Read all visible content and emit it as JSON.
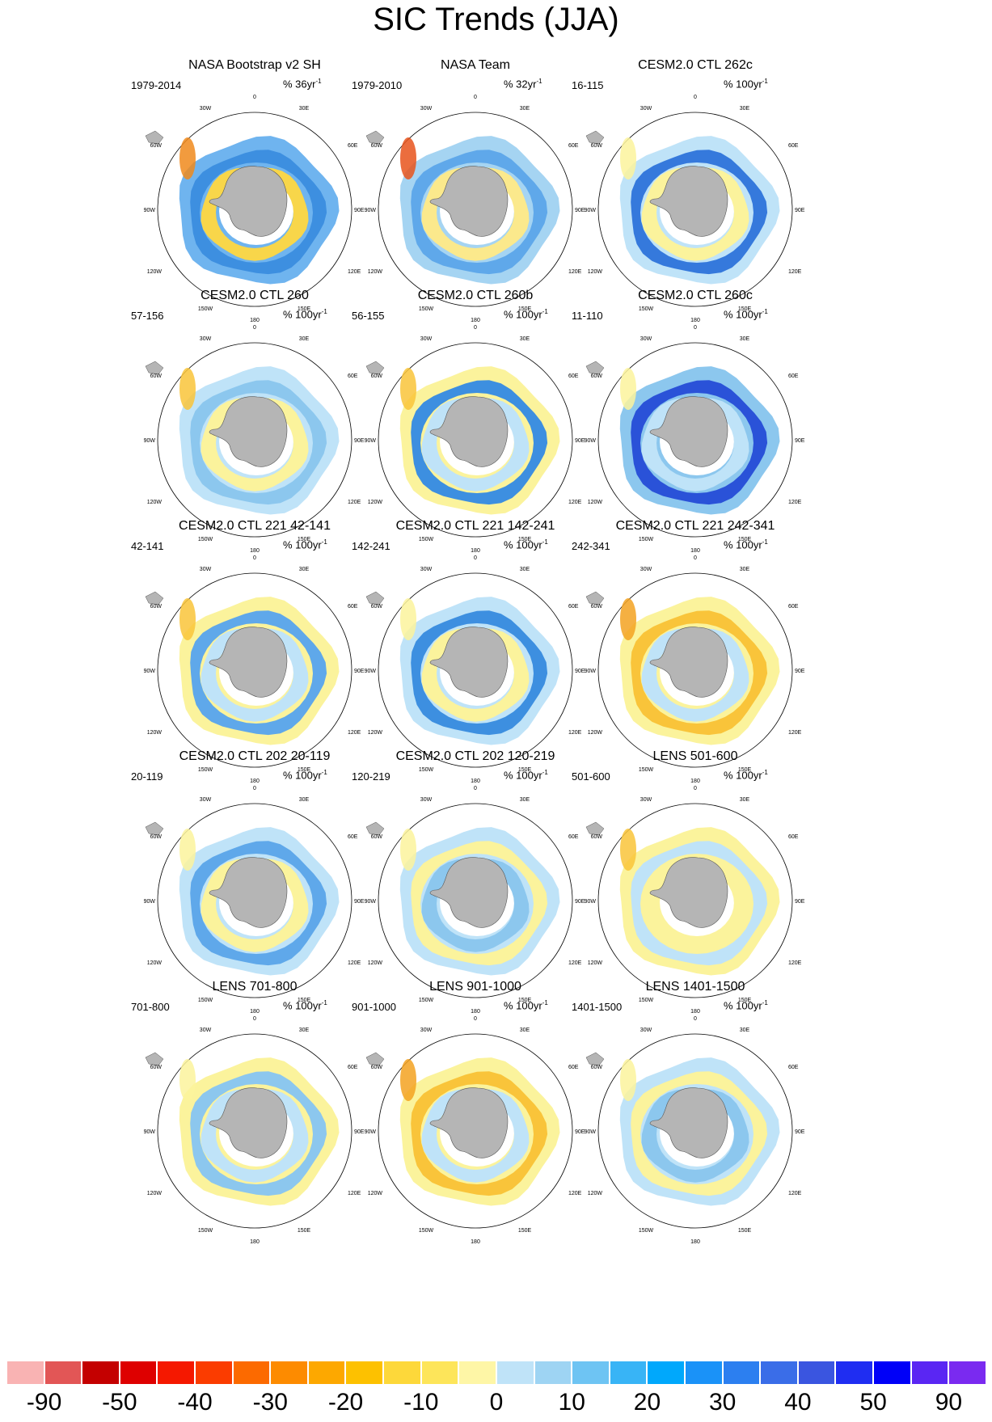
{
  "figure": {
    "title": "SIC Trends (JJA)"
  },
  "map_labels": {
    "top": "0",
    "top_left": "30W",
    "top_right": "30E",
    "upper_left": "60W",
    "upper_right": "60E",
    "left": "90W",
    "right": "90E",
    "lower_left": "120W",
    "lower_right": "120E",
    "bottom_left": "150W",
    "bottom_right": "150E",
    "bottom": "180"
  },
  "colors": {
    "land": "#b5b5b5",
    "ocean_bg": "#ffffff"
  },
  "panels": [
    {
      "title": "NASA Bootstrap v2 SH",
      "period": "1979-2014",
      "units": "% 36yr",
      "units_exp": "-1",
      "ring": [
        "#6fb4ef",
        "#3d8fe0",
        "#f8d64a"
      ],
      "accent": "#f08a1c"
    },
    {
      "title": "NASA Team",
      "period": "1979-2010",
      "units": "% 32yr",
      "units_exp": "-1",
      "ring": [
        "#a5d4f2",
        "#5fa8ea",
        "#fbe98c"
      ],
      "accent": "#e8541c"
    },
    {
      "title": "CESM2.0 CTL 262c",
      "period": "16-115",
      "units": "% 100yr",
      "units_exp": "-1",
      "ring": [
        "#bfe3f8",
        "#3579dc",
        "#fbf39c"
      ],
      "accent": "#fbf39c"
    },
    {
      "title": "CESM2.0 CTL 260",
      "period": "57-156",
      "units": "% 100yr",
      "units_exp": "-1",
      "ring": [
        "#bfe3f8",
        "#8cc7ee",
        "#fbf39c"
      ],
      "accent": "#f9c43a"
    },
    {
      "title": "CESM2.0 CTL 260b",
      "period": "56-155",
      "units": "% 100yr",
      "units_exp": "-1",
      "ring": [
        "#fbf39c",
        "#3d8fe0",
        "#bfe3f8"
      ],
      "accent": "#f9c43a"
    },
    {
      "title": "CESM2.0 CTL 260c",
      "period": "11-110",
      "units": "% 100yr",
      "units_exp": "-1",
      "ring": [
        "#8cc7ee",
        "#2a52d8",
        "#bfe3f8"
      ],
      "accent": "#fbf39c"
    },
    {
      "title": "CESM2.0 CTL 221 42-141",
      "period": "42-141",
      "units": "% 100yr",
      "units_exp": "-1",
      "ring": [
        "#fbf39c",
        "#5fa8ea",
        "#bfe3f8"
      ],
      "accent": "#f9c43a"
    },
    {
      "title": "CESM2.0 CTL 221 142-241",
      "period": "142-241",
      "units": "% 100yr",
      "units_exp": "-1",
      "ring": [
        "#bfe3f8",
        "#3d8fe0",
        "#fbf39c"
      ],
      "accent": "#fbf39c"
    },
    {
      "title": "CESM2.0 CTL 221 242-341",
      "period": "242-341",
      "units": "% 100yr",
      "units_exp": "-1",
      "ring": [
        "#fbf39c",
        "#f9c43a",
        "#bfe3f8"
      ],
      "accent": "#f3a221"
    },
    {
      "title": "CESM2.0 CTL 202 20-119",
      "period": "20-119",
      "units": "% 100yr",
      "units_exp": "-1",
      "ring": [
        "#bfe3f8",
        "#5fa8ea",
        "#fbf39c"
      ],
      "accent": "#fbf39c"
    },
    {
      "title": "CESM2.0 CTL 202 120-219",
      "period": "120-219",
      "units": "% 100yr",
      "units_exp": "-1",
      "ring": [
        "#bfe3f8",
        "#fbf39c",
        "#8cc7ee"
      ],
      "accent": "#fbf39c"
    },
    {
      "title": "LENS 501-600",
      "period": "501-600",
      "units": "% 100yr",
      "units_exp": "-1",
      "ring": [
        "#fbf39c",
        "#bfe3f8",
        "#fbf39c"
      ],
      "accent": "#f9c43a"
    },
    {
      "title": "LENS 701-800",
      "period": "701-800",
      "units": "% 100yr",
      "units_exp": "-1",
      "ring": [
        "#fbf39c",
        "#8cc7ee",
        "#bfe3f8"
      ],
      "accent": "#fbf39c"
    },
    {
      "title": "LENS 901-1000",
      "period": "901-1000",
      "units": "% 100yr",
      "units_exp": "-1",
      "ring": [
        "#fbf39c",
        "#f9c43a",
        "#bfe3f8"
      ],
      "accent": "#f3a221"
    },
    {
      "title": "LENS 1401-1500",
      "period": "1401-1500",
      "units": "% 100yr",
      "units_exp": "-1",
      "ring": [
        "#bfe3f8",
        "#fbf39c",
        "#8cc7ee"
      ],
      "accent": "#fbf39c"
    }
  ],
  "colorbar": {
    "colors": [
      "#f9b3b3",
      "#e25656",
      "#c40000",
      "#de0000",
      "#f51800",
      "#fb3c00",
      "#fc6a00",
      "#fd8b00",
      "#fda800",
      "#fdc100",
      "#fdd83a",
      "#fde55a",
      "#fef6a6",
      "#bfe3f8",
      "#9ed4f3",
      "#6ec4f3",
      "#38b4f6",
      "#00a8fc",
      "#1a92f8",
      "#2c7ff0",
      "#3a6de8",
      "#3a55e0",
      "#1f2df2",
      "#0000f8",
      "#5a26f3",
      "#7a2af0"
    ],
    "labels": [
      "-90",
      "-50",
      "-40",
      "-30",
      "-20",
      "-10",
      "0",
      "10",
      "20",
      "30",
      "40",
      "50",
      "90"
    ]
  }
}
